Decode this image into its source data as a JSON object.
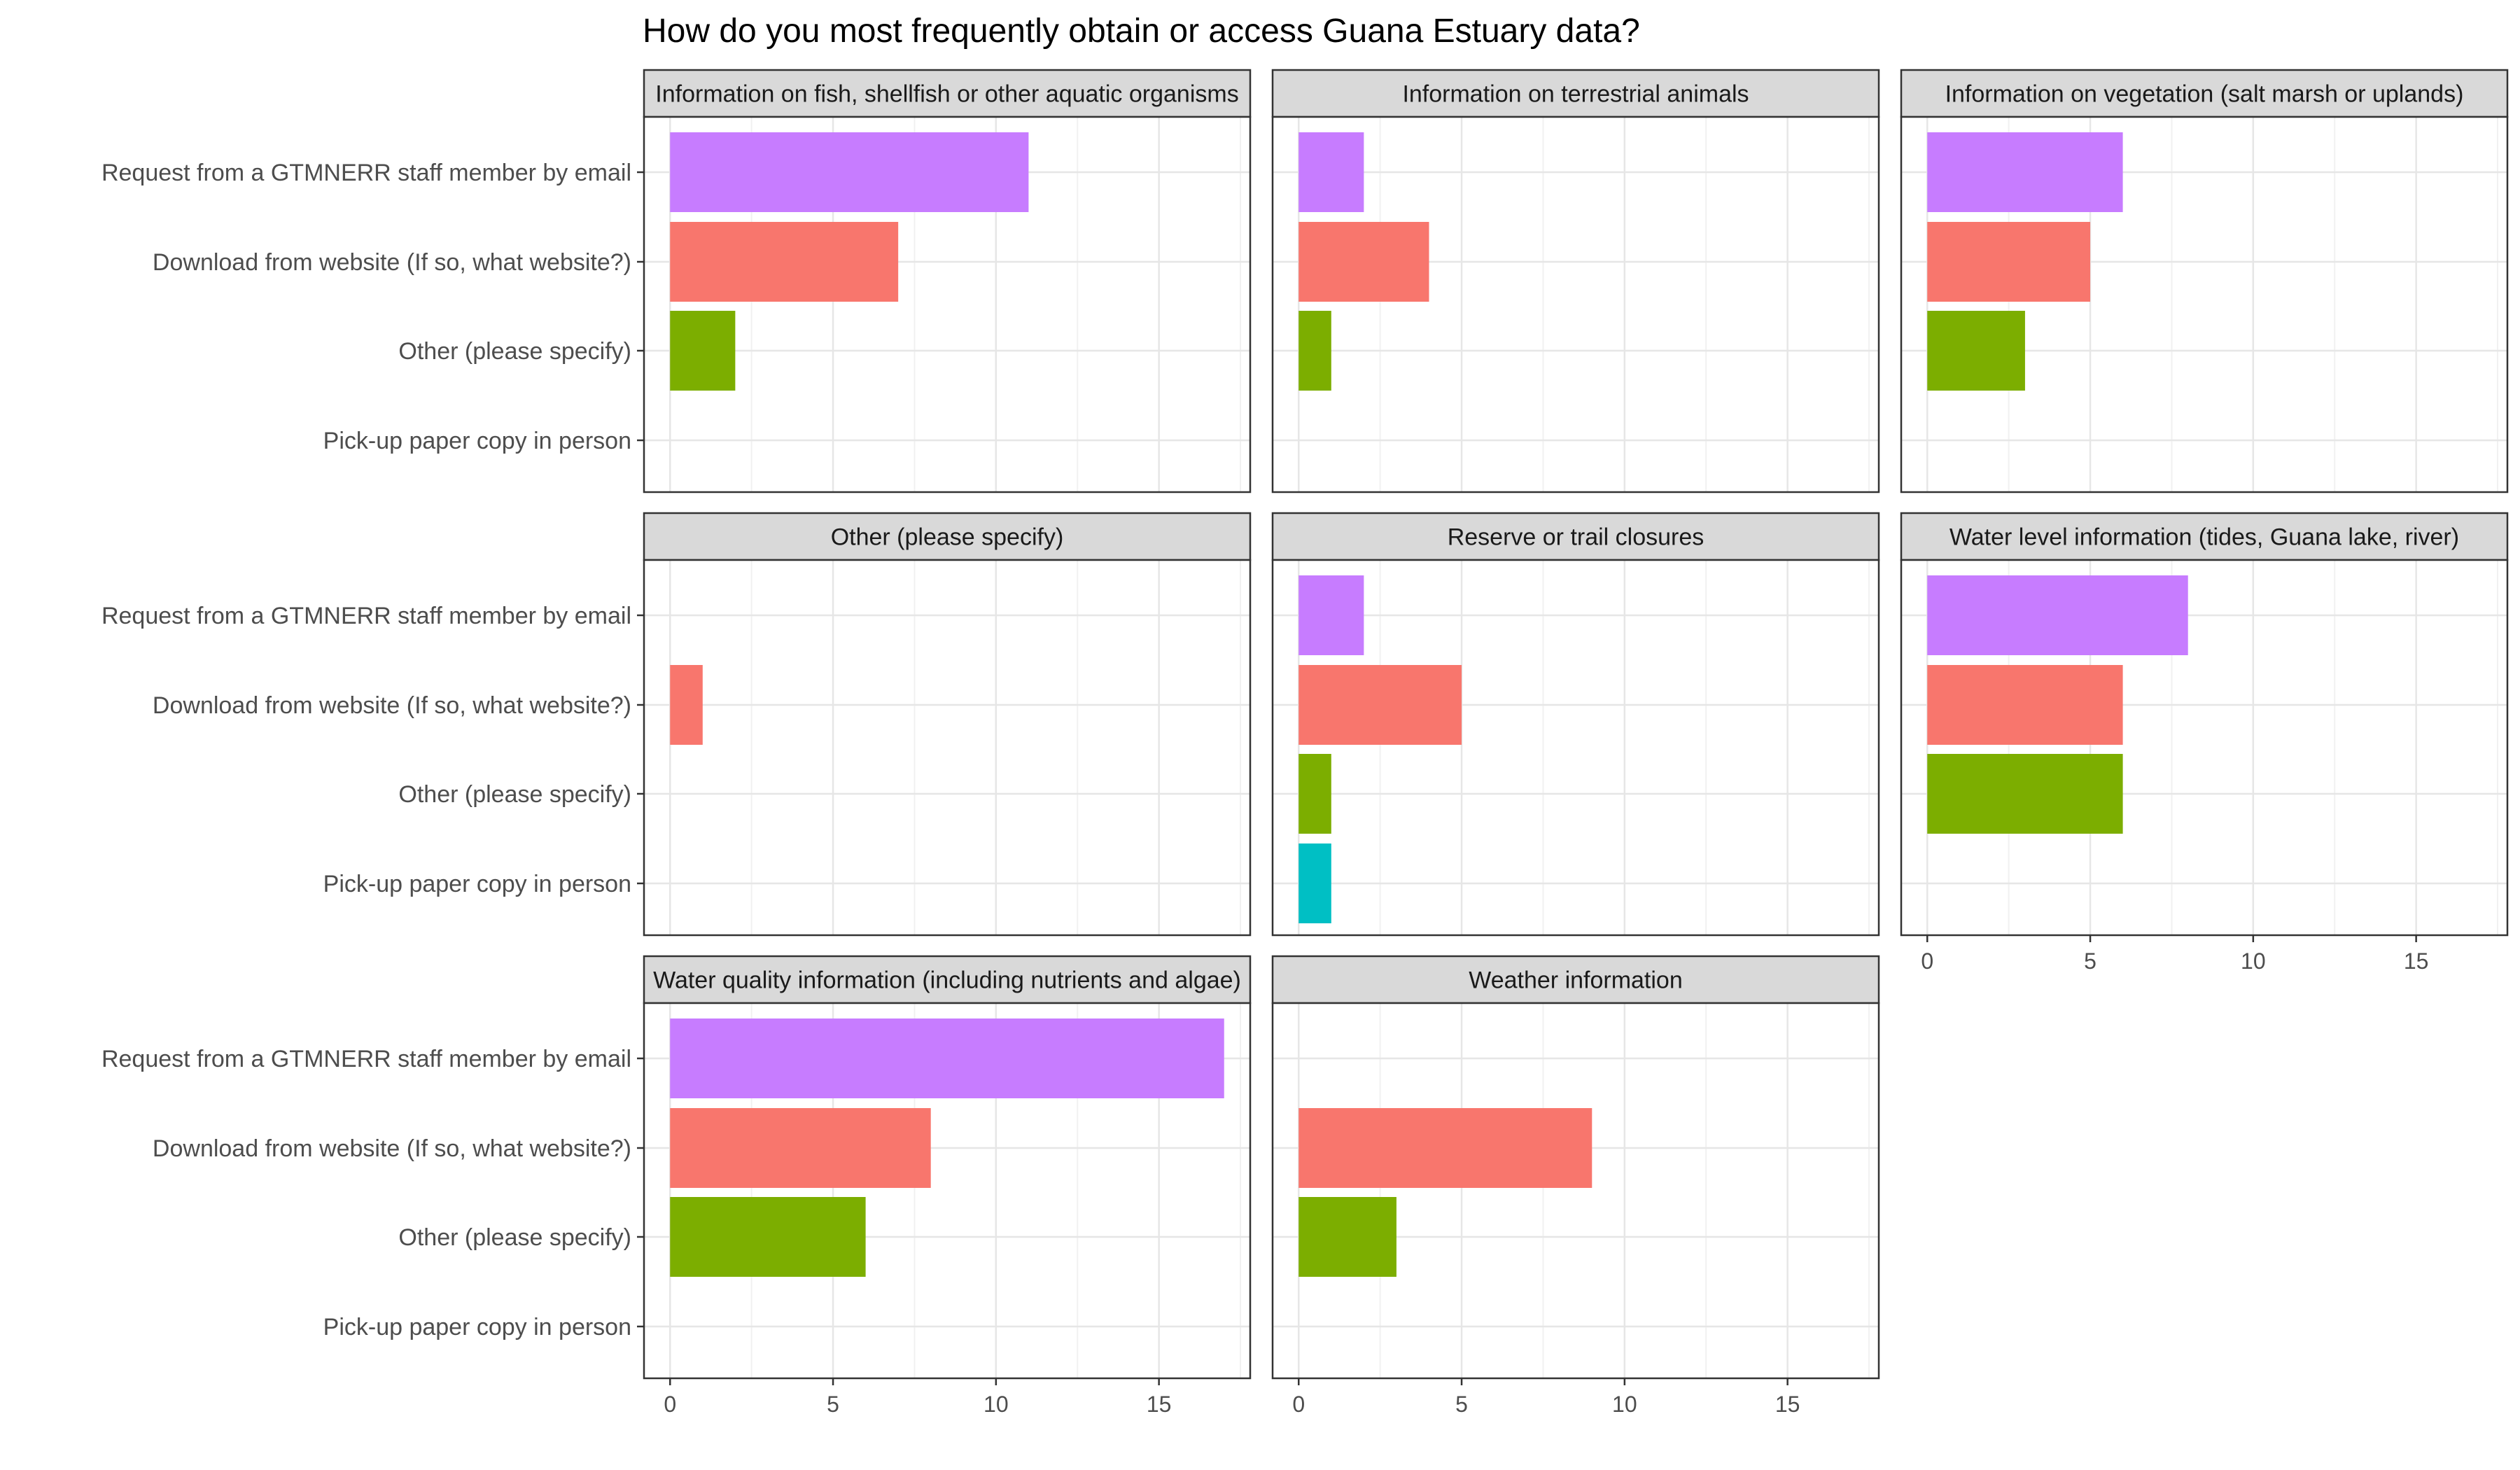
{
  "chart_data": {
    "type": "bar",
    "orientation": "horizontal",
    "title": "How do you most frequently obtain or access Guana Estuary data?",
    "xlabel": "",
    "ylabel": "",
    "xlim": [
      -0.8,
      17.8
    ],
    "x_ticks": [
      0,
      5,
      10,
      15
    ],
    "grid": true,
    "legend": "none",
    "categories": [
      "Request from a GTMNERR staff member by email",
      "Download from website (If so, what website?)",
      "Other (please specify)",
      "Pick-up paper copy in person"
    ],
    "category_colors": [
      "#c77cff",
      "#f8766d",
      "#7cae00",
      "#00bfc4"
    ],
    "panels": [
      {
        "title": "Information on fish, shellfish or other aquatic organisms",
        "values": [
          11,
          7,
          2,
          0
        ]
      },
      {
        "title": "Information on terrestrial animals",
        "values": [
          2,
          4,
          1,
          0
        ]
      },
      {
        "title": "Information on vegetation (salt marsh or uplands)",
        "values": [
          6,
          5,
          3,
          0
        ]
      },
      {
        "title": "Other (please specify)",
        "values": [
          0,
          1,
          0,
          0
        ]
      },
      {
        "title": "Reserve or trail closures",
        "values": [
          2,
          5,
          1,
          1
        ]
      },
      {
        "title": "Water level information (tides, Guana lake, river)",
        "values": [
          8,
          6,
          6,
          0
        ]
      },
      {
        "title": "Water quality information (including nutrients and algae)",
        "values": [
          17,
          8,
          6,
          0
        ]
      },
      {
        "title": "Weather information",
        "values": [
          0,
          9,
          3,
          0
        ]
      }
    ]
  }
}
